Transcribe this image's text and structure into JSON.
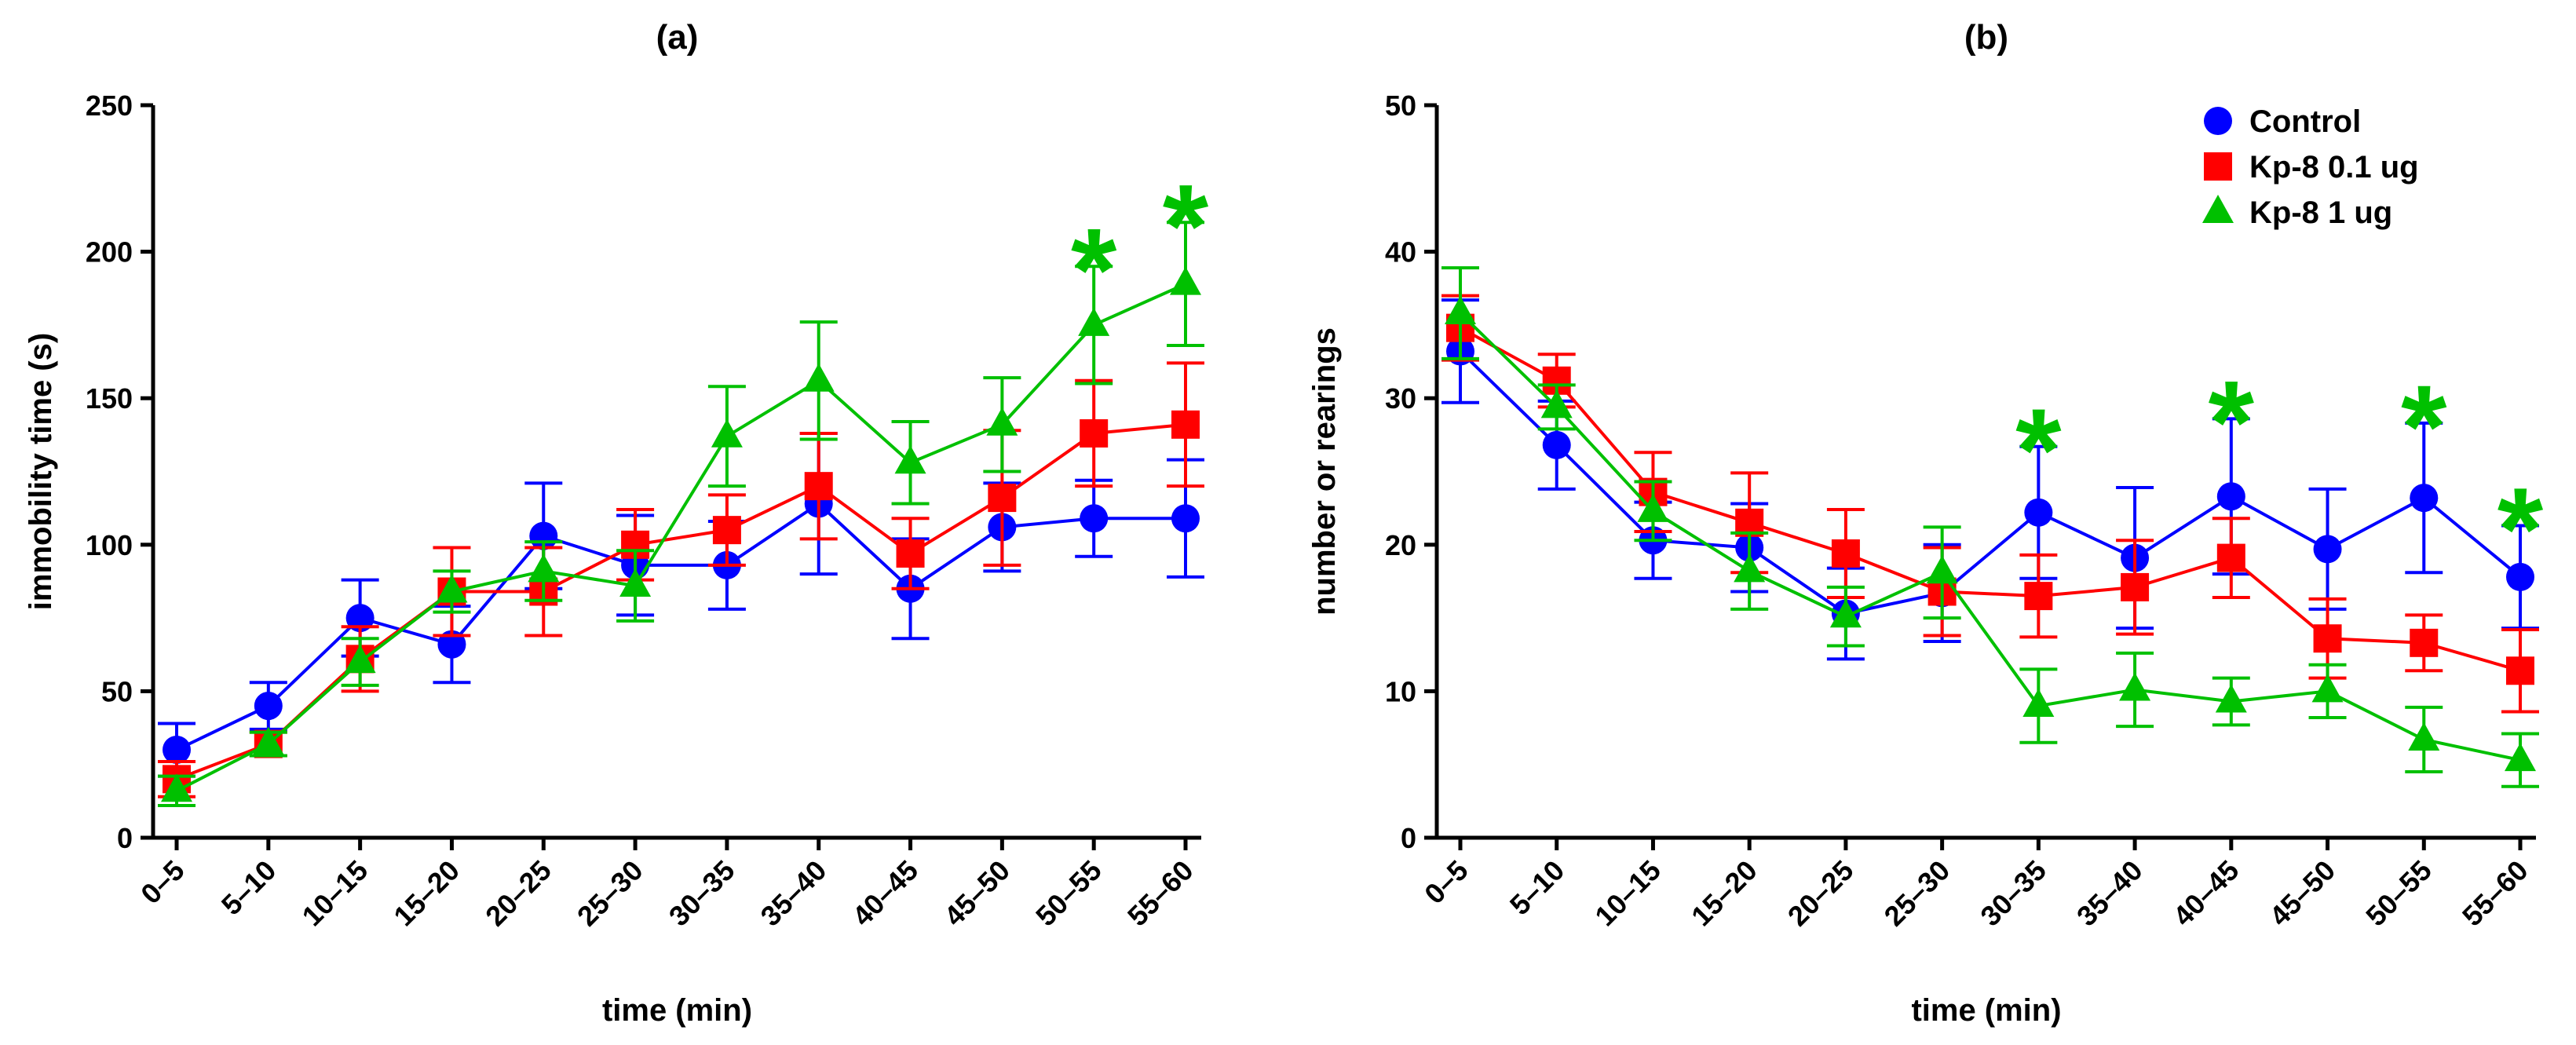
{
  "colors": {
    "control": "#0000FF",
    "kp8_low": "#FF0000",
    "kp8_high": "#00C000",
    "axis": "#000000"
  },
  "legend": [
    {
      "label": "Control",
      "marker": "circle",
      "color": "#0000FF"
    },
    {
      "label": "Kp-8 0.1 ug",
      "marker": "square",
      "color": "#FF0000"
    },
    {
      "label": "Kp-8 1 ug",
      "marker": "triangle",
      "color": "#00C000"
    }
  ],
  "chart_data": [
    {
      "type": "line",
      "title": "(a)",
      "xlabel": "time (min)",
      "ylabel": "immobility time (s)",
      "ylim": [
        0,
        250
      ],
      "yticks": [
        0,
        50,
        100,
        150,
        200,
        250
      ],
      "categories": [
        "0–5",
        "5–10",
        "10–15",
        "15–20",
        "20–25",
        "25–30",
        "30–35",
        "35–40",
        "40–45",
        "45–50",
        "50–55",
        "55–60"
      ],
      "legend_position": "none",
      "series": [
        {
          "name": "Control",
          "color": "#0000FF",
          "marker": "circle",
          "values": [
            30,
            45,
            75,
            66,
            103,
            93,
            93,
            114,
            85,
            106,
            109,
            109
          ],
          "errors": [
            9,
            8,
            13,
            13,
            18,
            17,
            15,
            24,
            17,
            15,
            13,
            20
          ]
        },
        {
          "name": "Kp-8 0.1 ug",
          "color": "#FF0000",
          "marker": "square",
          "values": [
            20,
            32,
            61,
            84,
            84,
            100,
            105,
            120,
            97,
            116,
            138,
            141
          ],
          "errors": [
            6,
            4,
            11,
            15,
            15,
            12,
            12,
            18,
            12,
            23,
            18,
            21
          ]
        },
        {
          "name": "Kp-8 1 ug",
          "color": "#00C000",
          "marker": "triangle",
          "values": [
            16,
            32,
            60,
            84,
            91,
            86,
            137,
            156,
            128,
            141,
            175,
            189
          ],
          "errors": [
            5,
            4,
            8,
            7,
            10,
            12,
            17,
            20,
            14,
            16,
            20,
            21
          ]
        }
      ],
      "annotations": [
        {
          "text": "*",
          "category": "50–55",
          "color": "#00C000"
        },
        {
          "text": "*",
          "category": "55–60",
          "color": "#00C000"
        }
      ]
    },
    {
      "type": "line",
      "title": "(b)",
      "xlabel": "time (min)",
      "ylabel": "number or rearings",
      "ylim": [
        0,
        50
      ],
      "yticks": [
        0,
        10,
        20,
        30,
        40,
        50
      ],
      "categories": [
        "0–5",
        "5–10",
        "10–15",
        "15–20",
        "20–25",
        "25–30",
        "30–35",
        "35–40",
        "40–45",
        "45–50",
        "50–55",
        "55–60"
      ],
      "legend_position": "top-right",
      "series": [
        {
          "name": "Control",
          "color": "#0000FF",
          "marker": "circle",
          "values": [
            33.2,
            26.8,
            20.3,
            19.8,
            15.3,
            16.7,
            22.2,
            19.1,
            23.3,
            19.7,
            23.2,
            17.8
          ],
          "errors": [
            3.5,
            3.0,
            2.6,
            3.0,
            3.1,
            3.3,
            4.5,
            4.8,
            5.3,
            4.1,
            5.1,
            3.5
          ]
        },
        {
          "name": "Kp-8 0.1 ug",
          "color": "#FF0000",
          "marker": "square",
          "values": [
            34.8,
            31.2,
            23.6,
            21.5,
            19.4,
            16.8,
            16.5,
            17.1,
            19.1,
            13.6,
            13.3,
            11.4
          ],
          "errors": [
            2.2,
            1.8,
            2.7,
            3.4,
            3.0,
            3.0,
            2.8,
            3.2,
            2.7,
            2.7,
            1.9,
            2.8
          ]
        },
        {
          "name": "Kp-8 1 ug",
          "color": "#00C000",
          "marker": "triangle",
          "values": [
            35.8,
            29.4,
            22.3,
            18.2,
            15.1,
            18.1,
            9.0,
            10.1,
            9.3,
            10.0,
            6.7,
            5.3
          ],
          "errors": [
            3.1,
            1.5,
            2.0,
            2.6,
            2.0,
            3.1,
            2.5,
            2.5,
            1.6,
            1.8,
            2.2,
            1.8
          ]
        }
      ],
      "annotations": [
        {
          "text": "*",
          "category": "30–35",
          "color": "#00C000"
        },
        {
          "text": "*",
          "category": "40–45",
          "color": "#00C000"
        },
        {
          "text": "*",
          "category": "50–55",
          "color": "#00C000"
        },
        {
          "text": "*",
          "category": "55–60",
          "color": "#00C000"
        }
      ]
    }
  ]
}
